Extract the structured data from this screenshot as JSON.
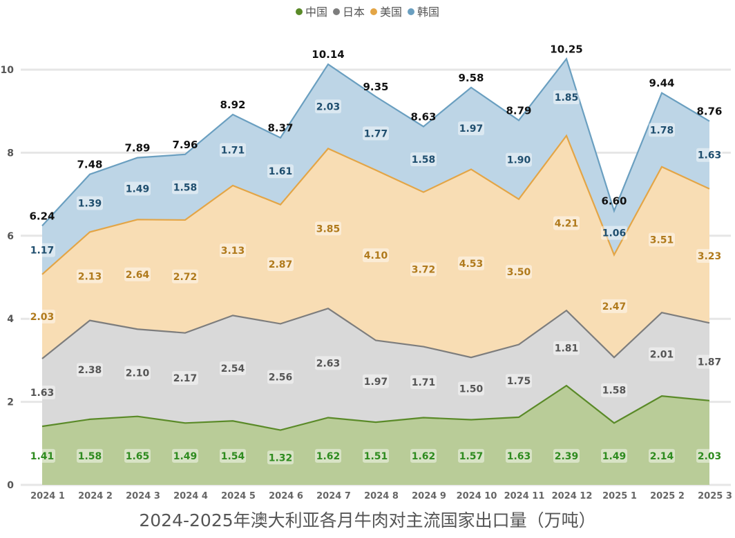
{
  "chart_data": {
    "type": "area",
    "stacked": true,
    "title": "2024-2025年澳大利亚各月牛肉对主流国家出口量（万吨）",
    "categories": [
      "2024 1",
      "2024 2",
      "2024 3",
      "2024 4",
      "2024 5",
      "2024 6",
      "2024 7",
      "2024 8",
      "2024 9",
      "2024 10",
      "2024 11",
      "2024 12",
      "2025 1",
      "2025 2",
      "2025 3"
    ],
    "ylim": [
      0,
      11
    ],
    "yticks": [
      0,
      2,
      4,
      6,
      8,
      10
    ],
    "grid": true,
    "legend_position": "top-center",
    "series": [
      {
        "name": "中国",
        "color": "#5a8a28",
        "fill": "#b9cc98",
        "label_color": "#2e8b1f",
        "values": [
          1.41,
          1.58,
          1.65,
          1.49,
          1.54,
          1.32,
          1.62,
          1.51,
          1.62,
          1.57,
          1.63,
          2.39,
          1.49,
          2.14,
          2.03
        ]
      },
      {
        "name": "日本",
        "color": "#7d7d7d",
        "fill": "#d9d9d9",
        "label_color": "#555555",
        "values": [
          1.63,
          2.38,
          2.1,
          2.17,
          2.54,
          2.56,
          2.63,
          1.97,
          1.71,
          1.5,
          1.75,
          1.81,
          1.58,
          2.01,
          1.87
        ]
      },
      {
        "name": "美国",
        "color": "#e3a546",
        "fill": "#f8ddb4",
        "label_color": "#b07a1c",
        "values": [
          2.03,
          2.13,
          2.64,
          2.72,
          3.13,
          2.87,
          3.85,
          4.1,
          3.72,
          4.53,
          3.5,
          4.21,
          2.47,
          3.51,
          3.23
        ]
      },
      {
        "name": "韩国",
        "color": "#6a9fc0",
        "fill": "#bdd5e6",
        "label_color": "#1f4e6e",
        "values": [
          1.17,
          1.39,
          1.49,
          1.58,
          1.71,
          1.61,
          2.03,
          1.77,
          1.58,
          1.97,
          1.9,
          1.85,
          1.06,
          1.78,
          1.63
        ]
      }
    ],
    "totals": [
      6.24,
      7.48,
      7.89,
      7.96,
      8.92,
      8.37,
      10.14,
      9.35,
      8.63,
      9.58,
      8.79,
      10.25,
      6.6,
      9.44,
      8.76
    ]
  }
}
